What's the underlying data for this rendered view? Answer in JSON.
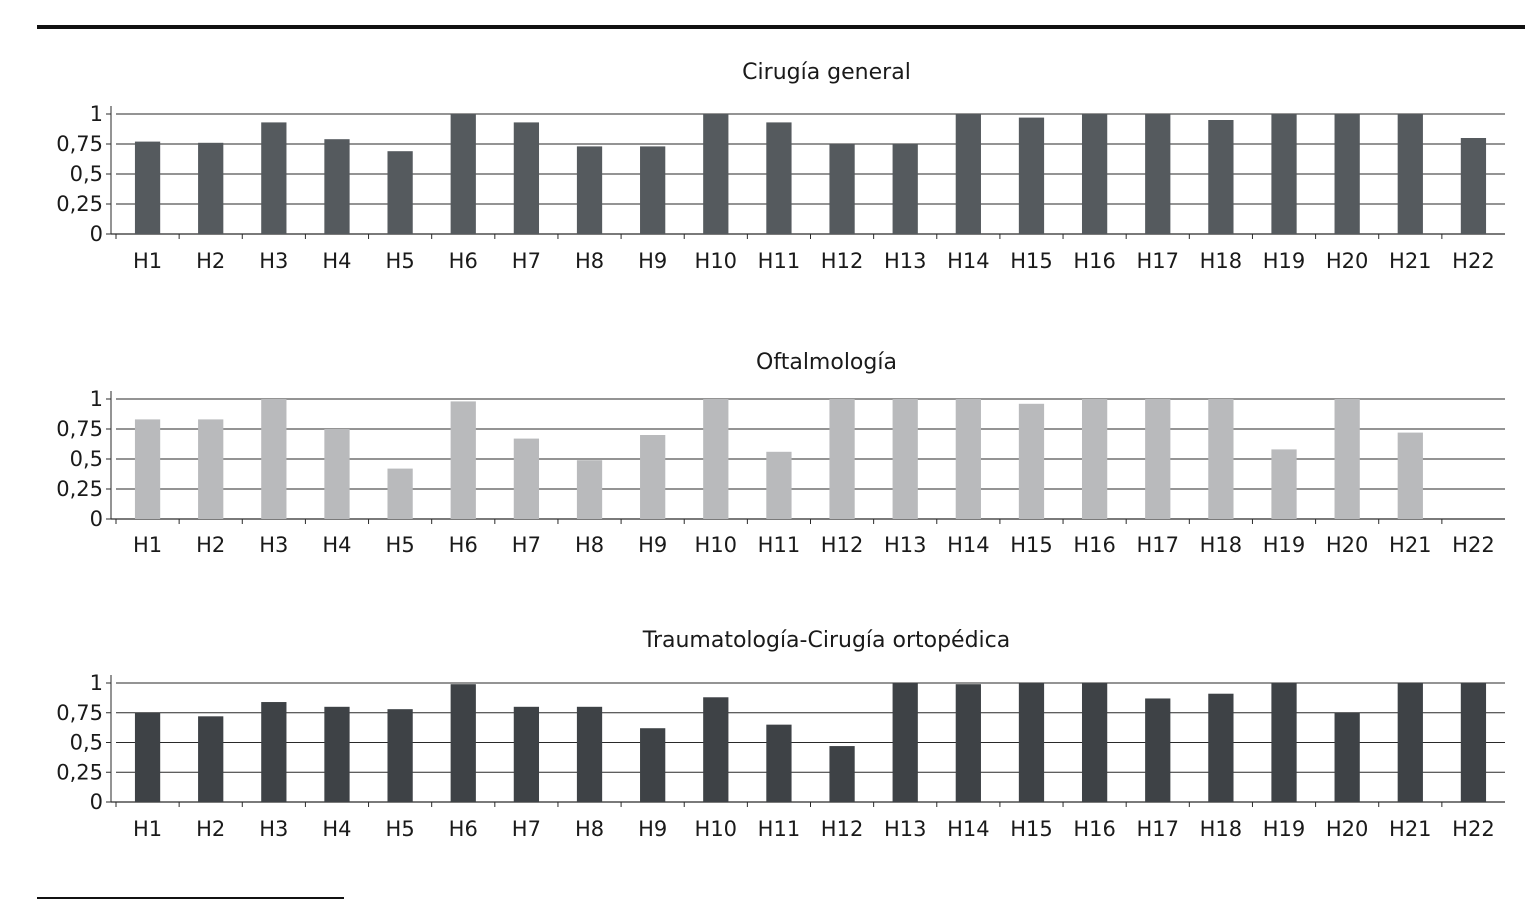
{
  "chart_data": [
    {
      "type": "bar",
      "title": "Cirugía general",
      "categories": [
        "H1",
        "H2",
        "H3",
        "H4",
        "H5",
        "H6",
        "H7",
        "H8",
        "H9",
        "H10",
        "H11",
        "H12",
        "H13",
        "H14",
        "H15",
        "H16",
        "H17",
        "H18",
        "H19",
        "H20",
        "H21",
        "H22"
      ],
      "values": [
        0.77,
        0.76,
        0.93,
        0.79,
        0.69,
        1.0,
        0.93,
        0.73,
        0.73,
        1.0,
        0.93,
        0.75,
        0.75,
        1.0,
        0.97,
        1.0,
        1.0,
        0.95,
        1.0,
        1.0,
        1.0,
        0.8
      ],
      "ylim": [
        0,
        1
      ],
      "yticks": [
        "0",
        "0,25",
        "0,5",
        "0,75",
        "1"
      ],
      "grid": true,
      "color": "#555a5e"
    },
    {
      "type": "bar",
      "title": "Oftalmología",
      "categories": [
        "H1",
        "H2",
        "H3",
        "H4",
        "H5",
        "H6",
        "H7",
        "H8",
        "H9",
        "H10",
        "H11",
        "H12",
        "H13",
        "H14",
        "H15",
        "H16",
        "H17",
        "H18",
        "H19",
        "H20",
        "H21",
        "H22"
      ],
      "values": [
        0.83,
        0.83,
        1.0,
        0.75,
        0.42,
        0.98,
        0.67,
        0.49,
        0.7,
        1.0,
        0.56,
        1.0,
        1.0,
        1.0,
        0.96,
        1.0,
        1.0,
        1.0,
        0.58,
        1.0,
        0.72,
        null
      ],
      "ylim": [
        0,
        1
      ],
      "yticks": [
        "0",
        "0,25",
        "0,5",
        "0,75",
        "1"
      ],
      "grid": true,
      "color": "#b9babc"
    },
    {
      "type": "bar",
      "title": "Traumatología-Cirugía ortopédica",
      "categories": [
        "H1",
        "H2",
        "H3",
        "H4",
        "H5",
        "H6",
        "H7",
        "H8",
        "H9",
        "H10",
        "H11",
        "H12",
        "H13",
        "H14",
        "H15",
        "H16",
        "H17",
        "H18",
        "H19",
        "H20",
        "H21",
        "H22"
      ],
      "values": [
        0.75,
        0.72,
        0.84,
        0.8,
        0.78,
        0.99,
        0.8,
        0.8,
        0.62,
        0.88,
        0.65,
        0.47,
        1.0,
        0.99,
        1.0,
        1.0,
        0.87,
        0.91,
        1.0,
        0.75,
        1.0,
        1.0
      ],
      "ylim": [
        0,
        1
      ],
      "yticks": [
        "0",
        "0,25",
        "0,5",
        "0,75",
        "1"
      ],
      "grid": true,
      "color": "#3e4246"
    }
  ]
}
